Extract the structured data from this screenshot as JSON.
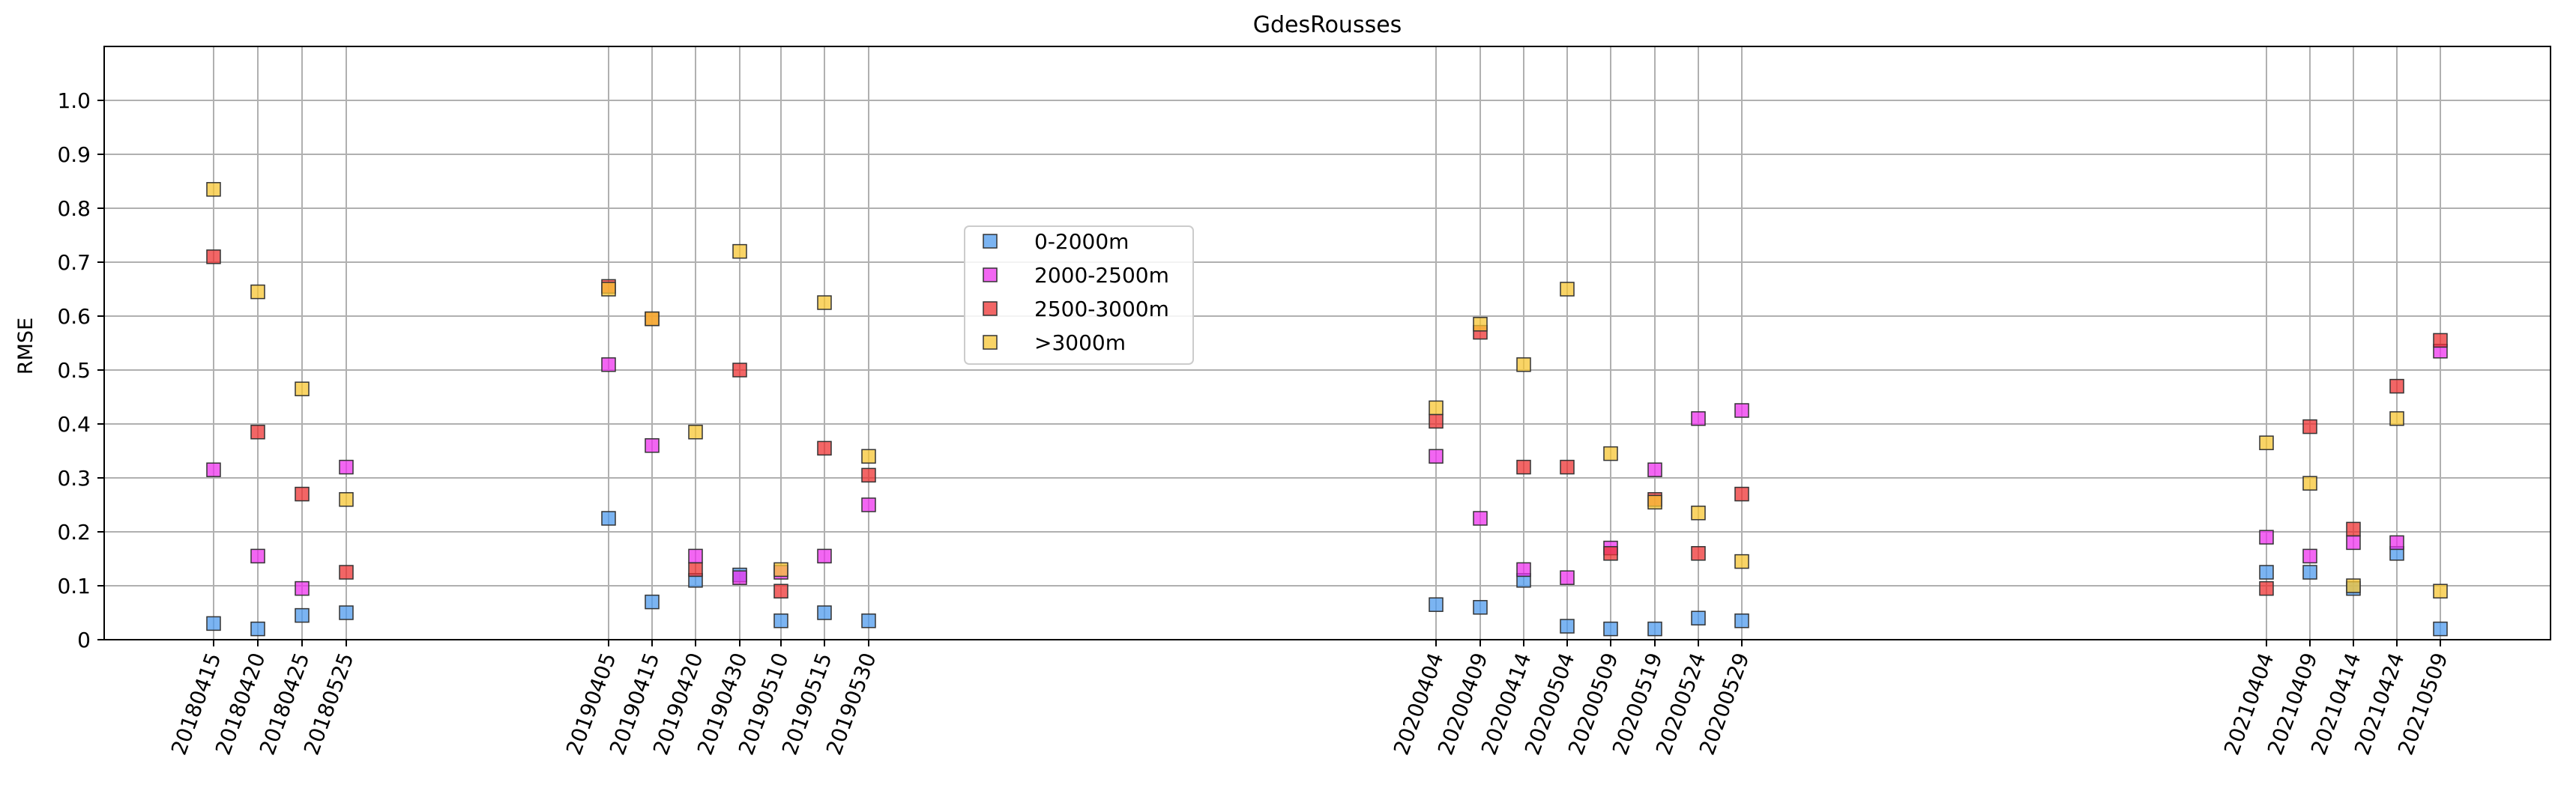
{
  "chart_data": {
    "type": "scatter",
    "title": "GdesRousses",
    "xlabel": "",
    "ylabel": "RMSE",
    "ylim": [
      0,
      1.1
    ],
    "yticks": [
      "0",
      "0.1",
      "0.2",
      "0.3",
      "0.4",
      "0.5",
      "0.6",
      "0.7",
      "0.8",
      "0.9",
      "1.0"
    ],
    "grid": true,
    "legend_position": "center",
    "categories": [
      "20180415",
      "20180420",
      "20180425",
      "20180525",
      "20190405",
      "20190415",
      "20190420",
      "20190430",
      "20190510",
      "20190515",
      "20190530",
      "20200404",
      "20200409",
      "20200414",
      "20200504",
      "20200509",
      "20200519",
      "20200524",
      "20200529",
      "20210404",
      "20210409",
      "20210414",
      "20210424",
      "20210509"
    ],
    "series": [
      {
        "name": "0-2000m",
        "color": "#4f9bee",
        "values": [
          0.03,
          0.02,
          0.045,
          0.05,
          0.225,
          0.07,
          0.11,
          0.12,
          0.035,
          0.05,
          0.035,
          0.065,
          0.06,
          0.11,
          0.025,
          0.02,
          0.02,
          0.04,
          0.035,
          0.125,
          0.125,
          0.095,
          0.16,
          0.02
        ]
      },
      {
        "name": "2000-2500m",
        "color": "#ee33ee",
        "values": [
          0.315,
          0.155,
          0.095,
          0.32,
          0.51,
          0.36,
          0.155,
          0.115,
          0.125,
          0.155,
          0.25,
          0.34,
          0.225,
          0.13,
          0.115,
          0.17,
          0.315,
          0.41,
          0.425,
          0.19,
          0.155,
          0.18,
          0.18,
          0.535
        ]
      },
      {
        "name": "2500-3000m",
        "color": "#ee3333",
        "values": [
          0.71,
          0.385,
          0.27,
          0.125,
          0.655,
          0.595,
          0.13,
          0.5,
          0.09,
          0.355,
          0.305,
          0.405,
          0.57,
          0.32,
          0.32,
          0.16,
          0.26,
          0.16,
          0.27,
          0.095,
          0.395,
          0.205,
          0.47,
          0.555
        ]
      },
      {
        "name": ">3000m",
        "color": "#f7c533",
        "values": [
          0.835,
          0.645,
          0.465,
          0.26,
          0.65,
          0.595,
          0.385,
          0.72,
          0.13,
          0.625,
          0.34,
          0.43,
          0.585,
          0.51,
          0.65,
          0.345,
          0.255,
          0.235,
          0.145,
          0.365,
          0.29,
          0.1,
          0.41,
          0.09
        ]
      }
    ]
  }
}
